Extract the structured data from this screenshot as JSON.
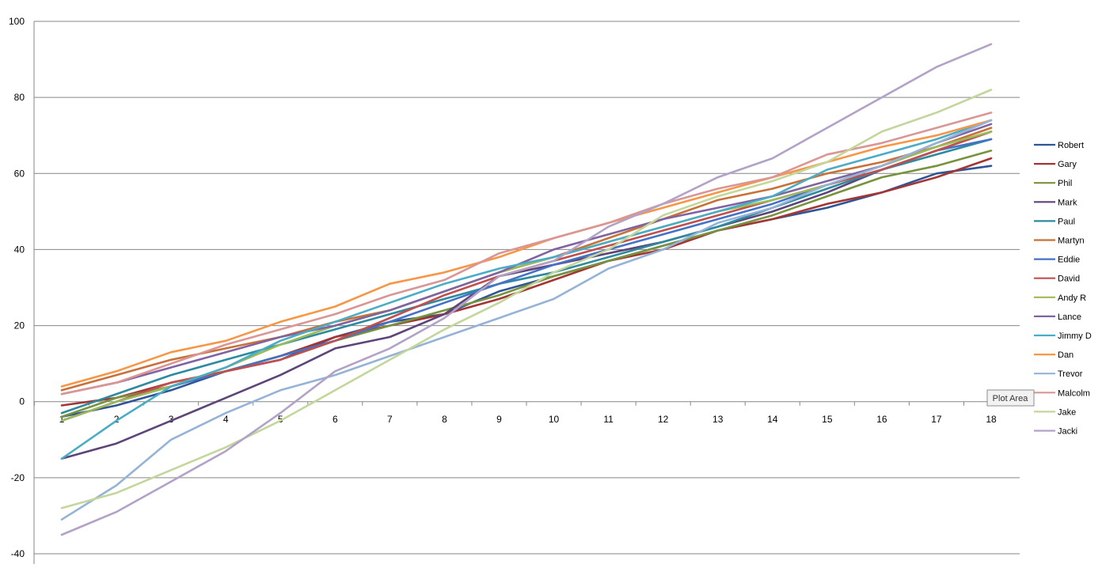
{
  "chart_data": {
    "type": "line",
    "title": "",
    "xlabel": "",
    "ylabel": "",
    "x": [
      1,
      2,
      3,
      4,
      5,
      6,
      7,
      8,
      9,
      10,
      11,
      12,
      13,
      14,
      15,
      16,
      17,
      18
    ],
    "ylim": [
      -40,
      100
    ],
    "yticks": [
      -40,
      -20,
      0,
      20,
      40,
      60,
      80,
      100
    ],
    "grid": "horizontal",
    "legend_position": "right",
    "series": [
      {
        "name": "Robert",
        "color": "#2f5597",
        "values": [
          -4,
          -1,
          3,
          8,
          11,
          17,
          21,
          23,
          29,
          33,
          37,
          41,
          45,
          48,
          51,
          55,
          60,
          62
        ]
      },
      {
        "name": "Gary",
        "color": "#a33634",
        "values": [
          -1,
          1,
          5,
          8,
          12,
          17,
          20,
          23,
          27,
          32,
          37,
          40,
          45,
          48,
          52,
          55,
          59,
          64
        ]
      },
      {
        "name": "Phil",
        "color": "#77933c",
        "values": [
          -4,
          1,
          4,
          8,
          12,
          16,
          20,
          24,
          28,
          33,
          37,
          41,
          45,
          49,
          54,
          59,
          62,
          66
        ]
      },
      {
        "name": "Mark",
        "color": "#5d4479",
        "values": [
          -15,
          -11,
          -5,
          1,
          7,
          14,
          17,
          23,
          33,
          36,
          39,
          42,
          46,
          50,
          55,
          61,
          66,
          71
        ]
      },
      {
        "name": "Paul",
        "color": "#2e8a9e",
        "values": [
          -3,
          2,
          7,
          11,
          15,
          19,
          23,
          27,
          31,
          34,
          38,
          42,
          46,
          51,
          56,
          61,
          65,
          69
        ]
      },
      {
        "name": "Martyn",
        "color": "#c87139",
        "values": [
          3,
          7,
          11,
          14,
          17,
          21,
          24,
          29,
          34,
          38,
          43,
          48,
          53,
          56,
          60,
          63,
          67,
          72
        ]
      },
      {
        "name": "Eddie",
        "color": "#4472c4",
        "values": [
          -5,
          0,
          4,
          8,
          12,
          16,
          21,
          26,
          31,
          36,
          40,
          44,
          48,
          52,
          57,
          61,
          66,
          69
        ]
      },
      {
        "name": "David",
        "color": "#c0504d",
        "values": [
          -5,
          0,
          5,
          8,
          11,
          16,
          22,
          28,
          33,
          37,
          41,
          45,
          49,
          53,
          57,
          61,
          66,
          71
        ]
      },
      {
        "name": "Andy R",
        "color": "#9bbb59",
        "values": [
          -5,
          0,
          4,
          9,
          15,
          20,
          24,
          29,
          34,
          38,
          42,
          46,
          50,
          53,
          57,
          62,
          67,
          71
        ]
      },
      {
        "name": "Lance",
        "color": "#8064a2",
        "values": [
          2,
          5,
          9,
          13,
          17,
          20,
          24,
          29,
          34,
          40,
          44,
          48,
          51,
          54,
          58,
          62,
          68,
          73
        ]
      },
      {
        "name": "Jimmy D",
        "color": "#4bacc6",
        "values": [
          -15,
          -5,
          4,
          9,
          16,
          21,
          26,
          31,
          35,
          38,
          42,
          46,
          50,
          54,
          61,
          65,
          69,
          74
        ]
      },
      {
        "name": "Dan",
        "color": "#f79646",
        "values": [
          4,
          8,
          13,
          16,
          21,
          25,
          31,
          34,
          38,
          43,
          47,
          51,
          55,
          59,
          63,
          67,
          70,
          74
        ]
      },
      {
        "name": "Trevor",
        "color": "#95b3d7",
        "values": [
          -31,
          -22,
          -10,
          -3,
          3,
          7,
          12,
          17,
          22,
          27,
          35,
          40,
          47,
          51,
          57,
          62,
          68,
          74
        ]
      },
      {
        "name": "Malcolm",
        "color": "#d99694",
        "values": [
          2,
          5,
          10,
          15,
          19,
          23,
          28,
          32,
          39,
          43,
          47,
          52,
          56,
          59,
          65,
          68,
          72,
          76
        ]
      },
      {
        "name": "Jake",
        "color": "#c3d69b",
        "values": [
          -28,
          -24,
          -18,
          -12,
          -5,
          3,
          11,
          19,
          26,
          34,
          40,
          49,
          54,
          58,
          63,
          71,
          76,
          82
        ]
      },
      {
        "name": "Jacki",
        "color": "#b3a2c7",
        "values": [
          -35,
          -29,
          -21,
          -13,
          -3,
          8,
          14,
          22,
          33,
          37,
          46,
          52,
          59,
          64,
          72,
          80,
          88,
          94
        ]
      }
    ]
  },
  "tooltip": {
    "text": "Plot Area"
  }
}
